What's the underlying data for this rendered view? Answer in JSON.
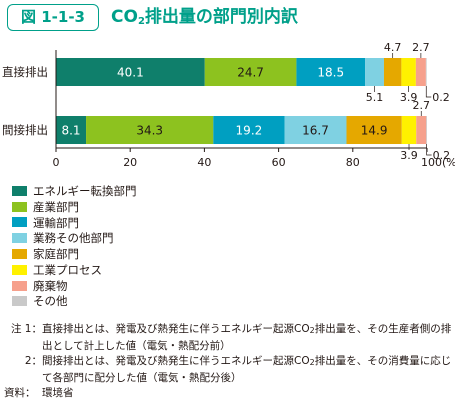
{
  "figure_label": "図 1-1-3",
  "title": {
    "prefix": "CO",
    "sub": "2",
    "suffix": "排出量の部門別内訳"
  },
  "chart_data": {
    "type": "bar",
    "orientation": "horizontal",
    "stacked": true,
    "categories": [
      "直接排出",
      "間接排出"
    ],
    "series": [
      {
        "name": "エネルギー転換部門",
        "color": "#0f7f6b",
        "values": [
          40.1,
          8.1
        ]
      },
      {
        "name": "産業部門",
        "color": "#8dc21f",
        "values": [
          24.7,
          34.3
        ]
      },
      {
        "name": "運輸部門",
        "color": "#009fc1",
        "values": [
          18.5,
          19.2
        ]
      },
      {
        "name": "業務その他部門",
        "color": "#7fd1e2",
        "values": [
          5.1,
          16.7
        ]
      },
      {
        "name": "家庭部門",
        "color": "#e5a800",
        "values": [
          4.7,
          14.9
        ]
      },
      {
        "name": "工業プロセス",
        "color": "#fff100",
        "values": [
          3.9,
          3.9
        ]
      },
      {
        "name": "廃棄物",
        "color": "#f6a08c",
        "values": [
          2.7,
          2.7
        ]
      },
      {
        "name": "その他",
        "color": "#c9c9c9",
        "values": [
          0.2,
          0.2
        ]
      }
    ],
    "xlim": [
      0,
      100
    ],
    "x_ticks": [
      "0",
      "20",
      "40",
      "60",
      "80",
      "100(%)"
    ],
    "inside_label_min": 8,
    "callouts": [
      {
        "bar": 0,
        "series": 4,
        "text": "4.7",
        "pos": "above"
      },
      {
        "bar": 0,
        "series": 6,
        "text": "2.7",
        "pos": "above"
      },
      {
        "bar": 0,
        "series": 3,
        "text": "5.1",
        "pos": "below"
      },
      {
        "bar": 0,
        "series": 5,
        "text": "3.9",
        "pos": "below"
      },
      {
        "bar": 0,
        "series": 7,
        "text": "0.2",
        "pos": "right-below"
      },
      {
        "bar": 1,
        "series": 6,
        "text": "2.7",
        "pos": "above"
      },
      {
        "bar": 1,
        "series": 5,
        "text": "3.9",
        "pos": "below"
      },
      {
        "bar": 1,
        "series": 7,
        "text": "0.2",
        "pos": "right-below"
      }
    ],
    "legend_position": "bottom-left"
  },
  "notes": [
    {
      "label": "注 1：",
      "parts": [
        "直接排出とは、発電及び熱発生に伴うエネルギー起源CO",
        "2",
        "排出量を、その生産者側の排出として計上した値（電気・熱配分前）"
      ]
    },
    {
      "label": "2：",
      "parts": [
        "間接排出とは、発電及び熱発生に伴うエネルギー起源CO",
        "2",
        "排出量を、その消費量に応じて各部門に配分した値（電気・熱配分後）"
      ]
    }
  ],
  "source": {
    "label": "資料：",
    "text": "環境省"
  }
}
